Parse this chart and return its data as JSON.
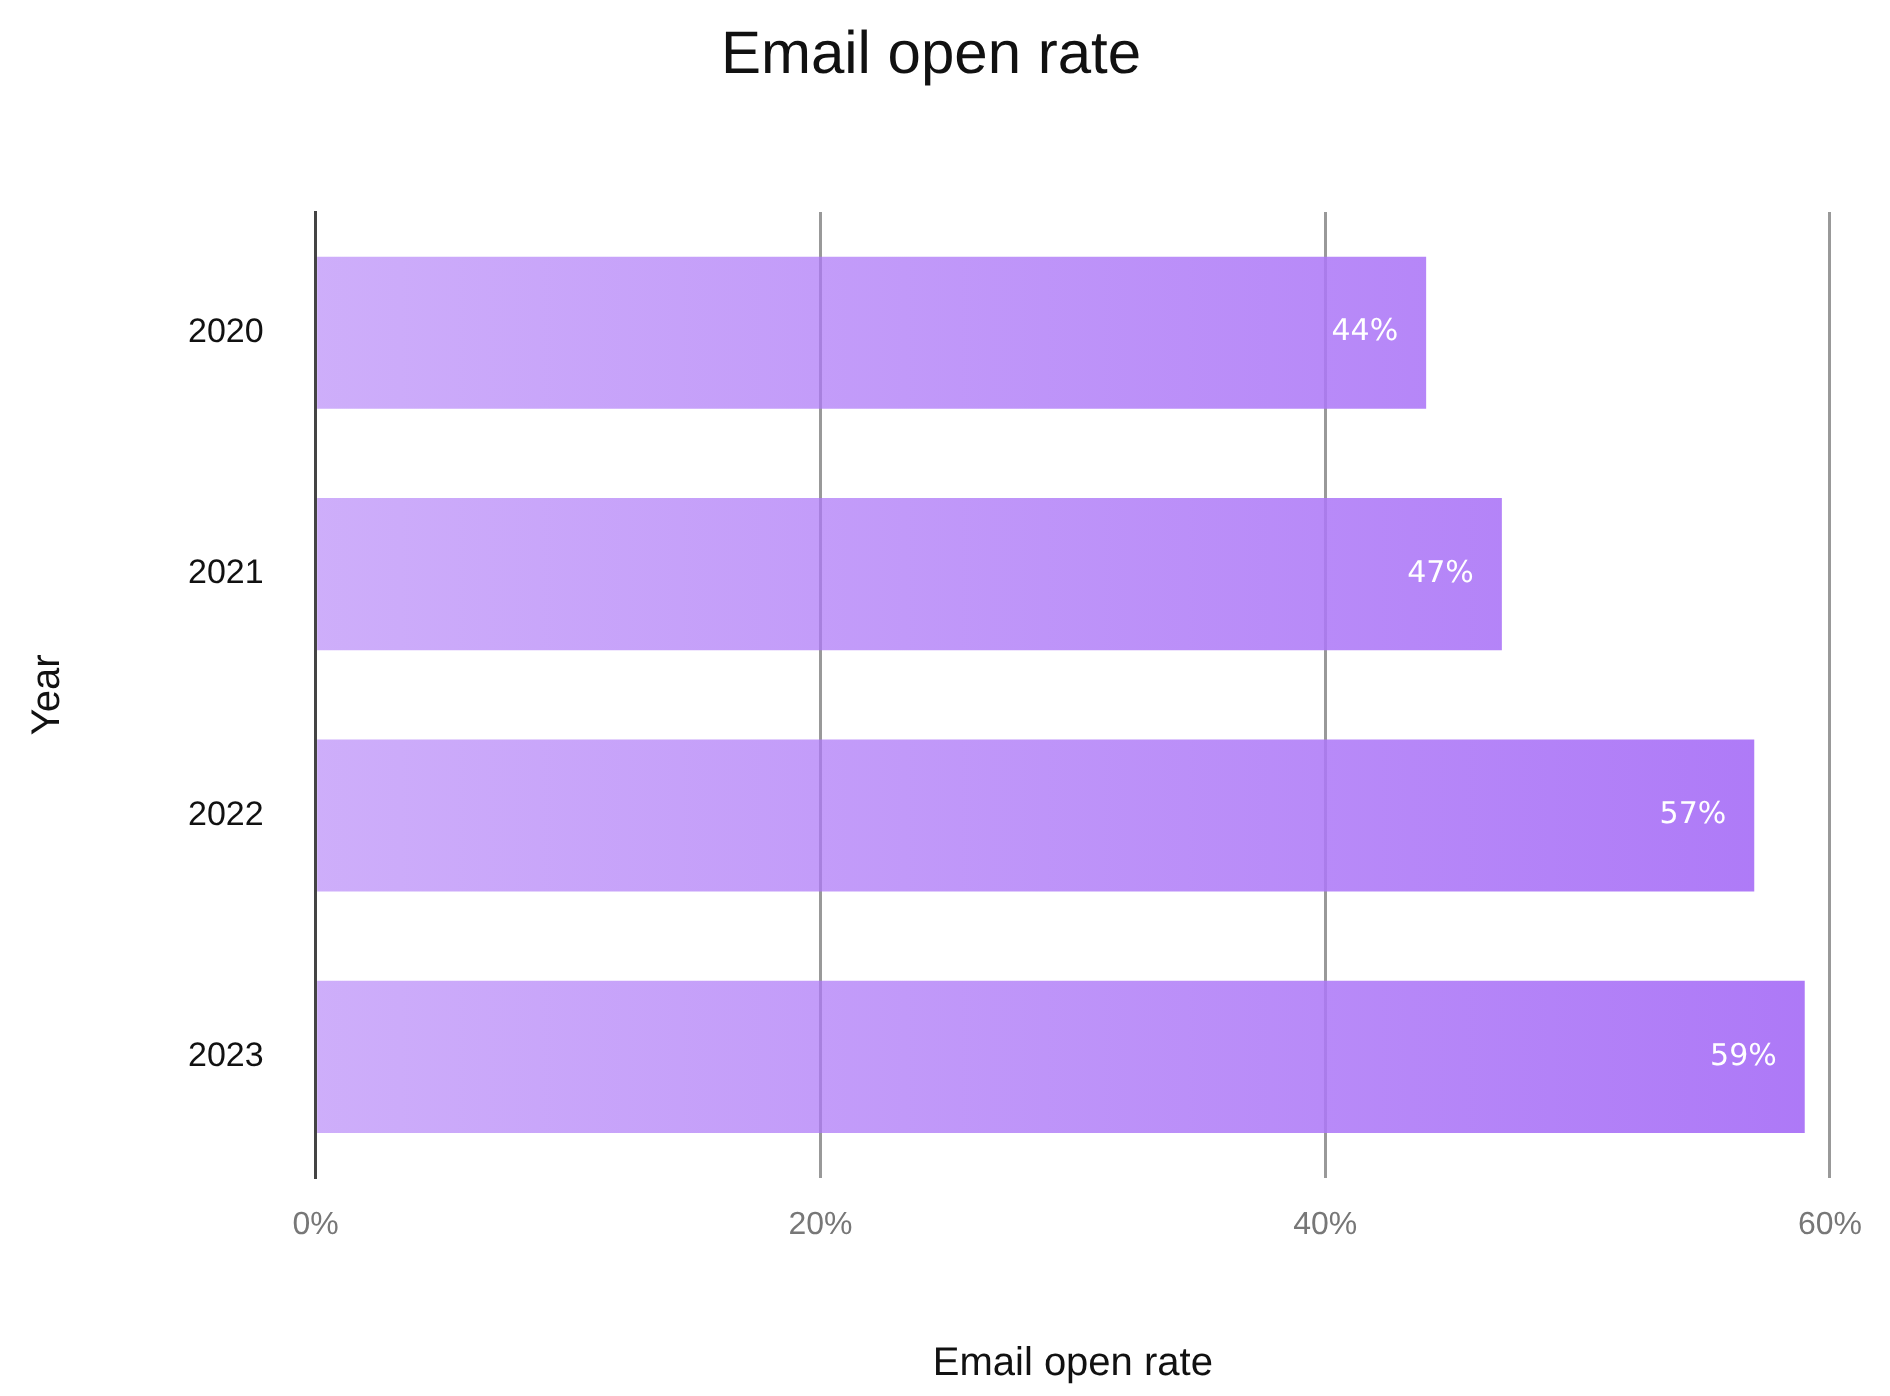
{
  "chart_data": {
    "type": "bar",
    "orientation": "horizontal",
    "title": "Email open rate",
    "xlabel": "Email open rate",
    "ylabel": "Year",
    "categories": [
      "2020",
      "2021",
      "2022",
      "2023"
    ],
    "values": [
      44,
      47,
      57,
      59
    ],
    "color": "#ad78f7",
    "xlim": [
      0,
      60
    ],
    "xticks": [
      {
        "value": 0,
        "label": "0%"
      },
      {
        "value": 20,
        "label": "20%"
      },
      {
        "value": 40,
        "label": "40%"
      },
      {
        "value": 60,
        "label": "60%"
      }
    ],
    "value_labels": [
      "44%",
      "47%",
      "57%",
      "59%"
    ],
    "grid": "x",
    "legend": false
  }
}
